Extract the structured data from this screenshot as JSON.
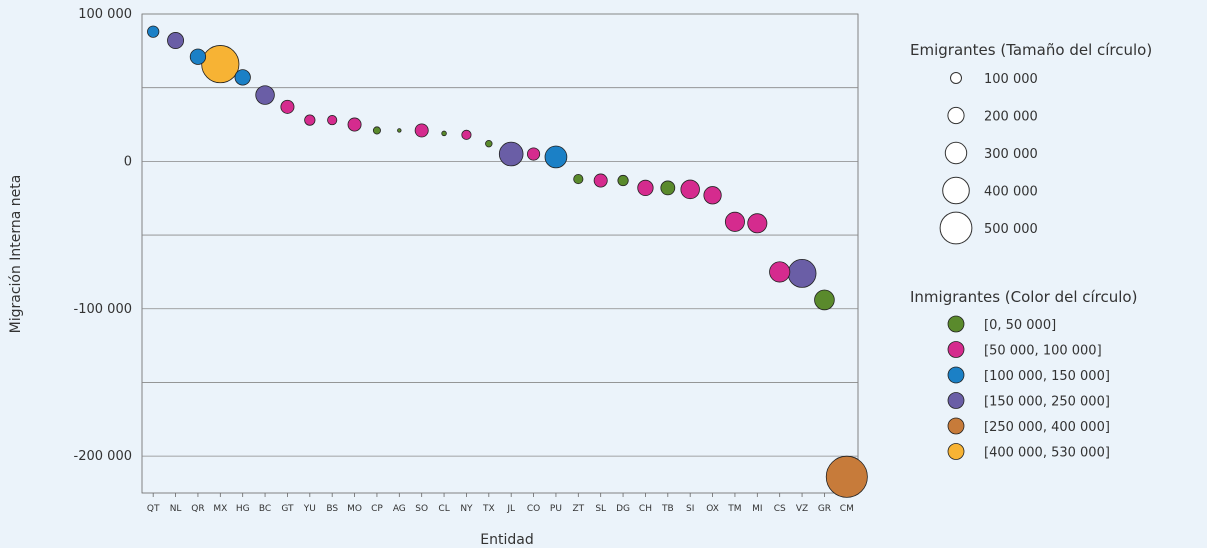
{
  "chart_data": {
    "type": "scatter",
    "xlabel": "Entidad",
    "ylabel": "Migración Interna neta",
    "ylim": [
      -225000,
      100000
    ],
    "yticks": [
      {
        "value": 100000,
        "label": "100 000"
      },
      {
        "value": 0,
        "label": "0"
      },
      {
        "value": -100000,
        "label": "-100 000"
      },
      {
        "value": -200000,
        "label": "-200 000"
      }
    ],
    "gridlines": [
      100000,
      50000,
      0,
      -50000,
      -100000,
      -150000,
      -200000
    ],
    "categories": [
      "QT",
      "NL",
      "QR",
      "MX",
      "HG",
      "BC",
      "GT",
      "YU",
      "BS",
      "MO",
      "CP",
      "AG",
      "SO",
      "CL",
      "NY",
      "TX",
      "JL",
      "CO",
      "PU",
      "ZT",
      "SL",
      "DG",
      "CH",
      "TB",
      "SI",
      "OX",
      "TM",
      "MI",
      "CS",
      "VZ",
      "GR",
      "CM"
    ],
    "points": [
      {
        "x": "QT",
        "y": 88000,
        "emigrantes": 30000,
        "color_group": 2
      },
      {
        "x": "NL",
        "y": 82000,
        "emigrantes": 60000,
        "color_group": 3
      },
      {
        "x": "QR",
        "y": 71000,
        "emigrantes": 55000,
        "color_group": 2
      },
      {
        "x": "MX",
        "y": 66000,
        "emigrantes": 320000,
        "color_group": 5
      },
      {
        "x": "HG",
        "y": 57000,
        "emigrantes": 55000,
        "color_group": 2
      },
      {
        "x": "BC",
        "y": 45000,
        "emigrantes": 80000,
        "color_group": 3
      },
      {
        "x": "GT",
        "y": 37000,
        "emigrantes": 40000,
        "color_group": 1
      },
      {
        "x": "YU",
        "y": 28000,
        "emigrantes": 25000,
        "color_group": 1
      },
      {
        "x": "BS",
        "y": 28000,
        "emigrantes": 20000,
        "color_group": 1
      },
      {
        "x": "MO",
        "y": 25000,
        "emigrantes": 40000,
        "color_group": 1
      },
      {
        "x": "CP",
        "y": 21000,
        "emigrantes": 12000,
        "color_group": 0
      },
      {
        "x": "AG",
        "y": 21000,
        "emigrantes": 3000,
        "color_group": 0
      },
      {
        "x": "SO",
        "y": 21000,
        "emigrantes": 40000,
        "color_group": 1
      },
      {
        "x": "CL",
        "y": 19000,
        "emigrantes": 5000,
        "color_group": 0
      },
      {
        "x": "NY",
        "y": 18000,
        "emigrantes": 20000,
        "color_group": 1
      },
      {
        "x": "TX",
        "y": 12000,
        "emigrantes": 10000,
        "color_group": 0
      },
      {
        "x": "JL",
        "y": 5000,
        "emigrantes": 130000,
        "color_group": 3
      },
      {
        "x": "CO",
        "y": 5000,
        "emigrantes": 35000,
        "color_group": 1
      },
      {
        "x": "PU",
        "y": 3000,
        "emigrantes": 110000,
        "color_group": 2
      },
      {
        "x": "ZT",
        "y": -12000,
        "emigrantes": 20000,
        "color_group": 0
      },
      {
        "x": "SL",
        "y": -13000,
        "emigrantes": 40000,
        "color_group": 1
      },
      {
        "x": "DG",
        "y": -13000,
        "emigrantes": 25000,
        "color_group": 0
      },
      {
        "x": "CH",
        "y": -18000,
        "emigrantes": 55000,
        "color_group": 1
      },
      {
        "x": "TB",
        "y": -18000,
        "emigrantes": 45000,
        "color_group": 0
      },
      {
        "x": "SI",
        "y": -19000,
        "emigrantes": 80000,
        "color_group": 1
      },
      {
        "x": "OX",
        "y": -23000,
        "emigrantes": 70000,
        "color_group": 1
      },
      {
        "x": "TM",
        "y": -41000,
        "emigrantes": 85000,
        "color_group": 1
      },
      {
        "x": "MI",
        "y": -42000,
        "emigrantes": 85000,
        "color_group": 1
      },
      {
        "x": "CS",
        "y": -75000,
        "emigrantes": 95000,
        "color_group": 1
      },
      {
        "x": "VZ",
        "y": -76000,
        "emigrantes": 180000,
        "color_group": 3
      },
      {
        "x": "GR",
        "y": -94000,
        "emigrantes": 90000,
        "color_group": 0
      },
      {
        "x": "CM",
        "y": -214000,
        "emigrantes": 390000,
        "color_group": 4
      }
    ],
    "size_legend": {
      "title": "Emigrantes (Tamaño del círculo)",
      "items": [
        {
          "value": 100000,
          "label": "100 000"
        },
        {
          "value": 200000,
          "label": "200 000"
        },
        {
          "value": 300000,
          "label": "300 000"
        },
        {
          "value": 400000,
          "label": "400 000"
        },
        {
          "value": 500000,
          "label": "500 000"
        }
      ]
    },
    "color_legend": {
      "title": "Inmigrantes (Color del círculo)",
      "items": [
        {
          "label": "[0, 50 000]",
          "color": "#5a8a2c"
        },
        {
          "label": "[50 000, 100 000]",
          "color": "#d52b8e"
        },
        {
          "label": "[100 000, 150 000]",
          "color": "#1b80c6"
        },
        {
          "label": "[150 000, 250 000]",
          "color": "#6a5ea6"
        },
        {
          "label": "[250 000, 400 000]",
          "color": "#c77b3a"
        },
        {
          "label": "[400 000, 530 000]",
          "color": "#f7b334"
        }
      ]
    }
  }
}
